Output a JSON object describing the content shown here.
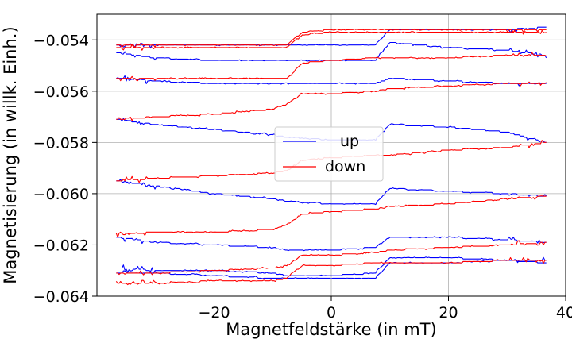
{
  "chart_data": {
    "type": "line",
    "title": "",
    "xlabel": "Magnetfeldstärke (in  mT)",
    "ylabel": "Magnetisierung (in willk. Einh.)",
    "xlim": [
      -40,
      40
    ],
    "ylim": [
      -0.064,
      -0.053
    ],
    "xticks": [
      -20,
      0,
      20,
      40
    ],
    "xtick_labels": [
      "−20",
      "0",
      "20",
      "40"
    ],
    "yticks": [
      -0.064,
      -0.062,
      -0.06,
      -0.058,
      -0.056,
      -0.054
    ],
    "ytick_labels": [
      "−0.064",
      "−0.062",
      "−0.060",
      "−0.058",
      "−0.056",
      "−0.054"
    ],
    "grid": true,
    "legend_position": "center",
    "colors": {
      "up": "#0000ff",
      "down": "#ff0000",
      "grid": "#b0b0b0"
    },
    "series": [
      {
        "name": "up",
        "color": "#0000ff",
        "x": [
          -36.7,
          -30,
          -20,
          -10,
          -7.5,
          0,
          7.5,
          10,
          20,
          30,
          36.7
        ],
        "y": [
          -0.0545,
          -0.0547,
          -0.0548,
          -0.0548,
          -0.0548,
          -0.0548,
          -0.0548,
          -0.0541,
          -0.0543,
          -0.0544,
          -0.0546
        ]
      },
      {
        "name": "",
        "color": "#0000ff",
        "x": [
          -36.7,
          -30,
          -20,
          -10,
          -7.5,
          0,
          7.5,
          10,
          20,
          30,
          36.7
        ],
        "y": [
          -0.0542,
          -0.0542,
          -0.0542,
          -0.0542,
          -0.0542,
          -0.0542,
          -0.0542,
          -0.0536,
          -0.0536,
          -0.0536,
          -0.0535
        ]
      },
      {
        "name": "",
        "color": "#0000ff",
        "x": [
          -36.7,
          -30,
          -20,
          -10,
          -7.5,
          0,
          7.5,
          10,
          20,
          30,
          36.7
        ],
        "y": [
          -0.0555,
          -0.0556,
          -0.0557,
          -0.0557,
          -0.0557,
          -0.0557,
          -0.0557,
          -0.0555,
          -0.0556,
          -0.0557,
          -0.0557
        ]
      },
      {
        "name": "",
        "color": "#0000ff",
        "x": [
          -36.7,
          -30,
          -20,
          -10,
          -7.5,
          0,
          7.5,
          10,
          20,
          30,
          36.7
        ],
        "y": [
          -0.0571,
          -0.0573,
          -0.0575,
          -0.0577,
          -0.0578,
          -0.0579,
          -0.0579,
          -0.0573,
          -0.0574,
          -0.0576,
          -0.058
        ]
      },
      {
        "name": "",
        "color": "#0000ff",
        "x": [
          -36.7,
          -30,
          -20,
          -10,
          -7.5,
          0,
          7.5,
          10,
          20,
          30,
          36.7
        ],
        "y": [
          -0.0595,
          -0.0597,
          -0.06,
          -0.0602,
          -0.0603,
          -0.0604,
          -0.0604,
          -0.0598,
          -0.0599,
          -0.06,
          -0.0601
        ]
      },
      {
        "name": "",
        "color": "#0000ff",
        "x": [
          -36.7,
          -30,
          -20,
          -10,
          -7.5,
          0,
          7.5,
          10,
          20,
          30,
          36.7
        ],
        "y": [
          -0.0617,
          -0.0619,
          -0.062,
          -0.0621,
          -0.0622,
          -0.0622,
          -0.0621,
          -0.0617,
          -0.0617,
          -0.0618,
          -0.0619
        ]
      },
      {
        "name": "",
        "color": "#0000ff",
        "x": [
          -36.7,
          -30,
          -20,
          -10,
          -7.5,
          0,
          7.5,
          10,
          20,
          30,
          36.7
        ],
        "y": [
          -0.0629,
          -0.063,
          -0.063,
          -0.0631,
          -0.0632,
          -0.0632,
          -0.0631,
          -0.0625,
          -0.0625,
          -0.0626,
          -0.0626
        ]
      },
      {
        "name": "",
        "color": "#0000ff",
        "x": [
          -36.7,
          -30,
          -20,
          -10,
          -7.5,
          0,
          7.5,
          10,
          20,
          30,
          36.7
        ],
        "y": [
          -0.0631,
          -0.0631,
          -0.0632,
          -0.0633,
          -0.0633,
          -0.0633,
          -0.0633,
          -0.0627,
          -0.0627,
          -0.0626,
          -0.0627
        ]
      },
      {
        "name": "down",
        "color": "#ff0000",
        "x": [
          36.7,
          30,
          20,
          10,
          7.5,
          0,
          -5,
          -7.5,
          -10,
          -20,
          -30,
          -36.7
        ],
        "y": [
          -0.0536,
          -0.0536,
          -0.0536,
          -0.0536,
          -0.0536,
          -0.0536,
          -0.0537,
          -0.0542,
          -0.0542,
          -0.0542,
          -0.0542,
          -0.0542
        ]
      },
      {
        "name": "",
        "color": "#ff0000",
        "x": [
          36.7,
          30,
          20,
          10,
          7.5,
          0,
          -5,
          -7.5,
          -10,
          -20,
          -30,
          -36.7
        ],
        "y": [
          -0.0537,
          -0.0537,
          -0.0537,
          -0.0537,
          -0.0537,
          -0.0537,
          -0.0538,
          -0.0543,
          -0.0543,
          -0.0543,
          -0.0543,
          -0.0543
        ]
      },
      {
        "name": "",
        "color": "#ff0000",
        "x": [
          36.7,
          30,
          20,
          10,
          7.5,
          0,
          -5,
          -7.5,
          -10,
          -20,
          -30,
          -36.7
        ],
        "y": [
          -0.0546,
          -0.0546,
          -0.0547,
          -0.0547,
          -0.0547,
          -0.0548,
          -0.0549,
          -0.0555,
          -0.0555,
          -0.0555,
          -0.0555,
          -0.0555
        ]
      },
      {
        "name": "",
        "color": "#ff0000",
        "x": [
          36.7,
          30,
          20,
          10,
          7.5,
          0,
          -5,
          -7.5,
          -10,
          -20,
          -30,
          -36.7
        ],
        "y": [
          -0.0557,
          -0.0557,
          -0.0558,
          -0.0559,
          -0.056,
          -0.0561,
          -0.0561,
          -0.0565,
          -0.0567,
          -0.0569,
          -0.057,
          -0.0571
        ]
      },
      {
        "name": "",
        "color": "#ff0000",
        "x": [
          36.7,
          30,
          20,
          10,
          7.5,
          0,
          -5,
          -7.5,
          -10,
          -20,
          -30,
          -36.7
        ],
        "y": [
          -0.058,
          -0.0582,
          -0.0583,
          -0.0585,
          -0.0585,
          -0.0586,
          -0.0587,
          -0.0591,
          -0.0592,
          -0.0593,
          -0.0594,
          -0.0595
        ]
      },
      {
        "name": "",
        "color": "#ff0000",
        "x": [
          36.7,
          30,
          20,
          10,
          7.5,
          0,
          -5,
          -7.5,
          -10,
          -20,
          -30,
          -36.7
        ],
        "y": [
          -0.0601,
          -0.0602,
          -0.0604,
          -0.0605,
          -0.0606,
          -0.0607,
          -0.0608,
          -0.0612,
          -0.0614,
          -0.0615,
          -0.0615,
          -0.0616
        ]
      },
      {
        "name": "",
        "color": "#ff0000",
        "x": [
          36.7,
          30,
          20,
          10,
          7.5,
          0,
          -5,
          -7.5,
          -10,
          -20,
          -30,
          -36.7
        ],
        "y": [
          -0.0619,
          -0.062,
          -0.0621,
          -0.0622,
          -0.0623,
          -0.0624,
          -0.0624,
          -0.0628,
          -0.0629,
          -0.063,
          -0.0631,
          -0.0631
        ]
      },
      {
        "name": "",
        "color": "#ff0000",
        "x": [
          36.7,
          30,
          20,
          10,
          7.5,
          0,
          -5,
          -7.5,
          -10,
          -20,
          -30,
          -36.7
        ],
        "y": [
          -0.0626,
          -0.0626,
          -0.0627,
          -0.0627,
          -0.0627,
          -0.0628,
          -0.0628,
          -0.0633,
          -0.0634,
          -0.0634,
          -0.0635,
          -0.0635
        ]
      }
    ]
  }
}
